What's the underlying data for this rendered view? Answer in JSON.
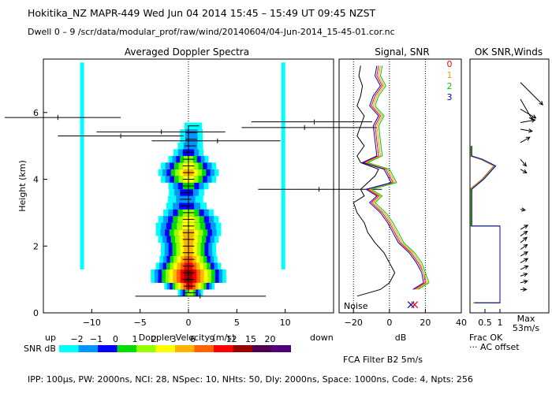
{
  "header": {
    "title": "Hokitika_NZ   MAPR-449   Wed Jun 04 2014 15:45 – 15:49 UT 09:45 NZST",
    "subtitle": "Dwell   0 –  9   /scr/data/modular_prof/raw/wind/20140604/04-Jun-2014_15-45-01.cor.nc"
  },
  "footer": {
    "text": "IPP: 100μs,  PW: 2000ns,  NCI:  28,  NSpec: 10,  NHts: 50,  Dly: 2000ns,  Space: 1000ns,  Code: 4,  Npts: 256"
  },
  "chart_data": [
    {
      "type": "heatmap",
      "title": "Averaged Doppler Spectra",
      "xlabel": "Doppler Velocity (m/s)",
      "ylabel": "Height (km)",
      "xlim": [
        -15,
        15
      ],
      "ylim": [
        0,
        7.6
      ],
      "xticks": [
        -10,
        -5,
        0,
        5,
        10
      ],
      "yticks": [
        0,
        2,
        4,
        6
      ],
      "side_labels": {
        "up": "up",
        "down": "down"
      },
      "spectral_lines_x": [
        -11,
        9.8
      ],
      "spectral_lines_y": [
        1.3,
        7.5
      ],
      "spectrum_profile": {
        "heights": [
          0.6,
          0.8,
          1.0,
          1.2,
          1.4,
          1.6,
          1.8,
          2.0,
          2.2,
          2.4,
          2.6,
          2.8,
          3.0,
          3.2,
          3.4,
          3.6,
          3.8,
          4.0,
          4.2,
          4.4,
          4.6,
          4.8,
          5.0,
          5.2,
          5.4,
          5.6
        ],
        "snr_db": [
          2,
          14,
          18,
          16,
          12,
          9,
          7,
          6,
          6,
          6,
          5,
          4,
          2,
          0,
          -1,
          0,
          1,
          4,
          6,
          5,
          2,
          0,
          -1,
          -1,
          -1,
          -2
        ],
        "width_ms": [
          1.0,
          2.0,
          3.0,
          3.0,
          2.6,
          2.3,
          2.2,
          2.2,
          2.4,
          2.6,
          2.6,
          2.4,
          2.0,
          1.6,
          1.4,
          1.4,
          1.6,
          2.2,
          2.4,
          2.2,
          1.6,
          1.2,
          1.0,
          0.9,
          0.9,
          0.7
        ],
        "peak_ms": [
          0.2,
          0.1,
          0.0,
          0.0,
          0.0,
          0.0,
          0.0,
          0.0,
          0.0,
          0.0,
          0.0,
          0.0,
          0.0,
          -0.2,
          -0.3,
          -0.2,
          0.0,
          0.0,
          0.0,
          0.0,
          0.0,
          0.0,
          0.2,
          0.3,
          0.3,
          0.5
        ]
      },
      "moment_bars": [
        {
          "h": 5.85,
          "v": -13.5,
          "lo": -19,
          "hi": -7
        },
        {
          "h": 5.72,
          "v": 13,
          "lo": 6.5,
          "hi": 19
        },
        {
          "h": 5.55,
          "v": 12,
          "lo": 5.5,
          "hi": 19.5
        },
        {
          "h": 5.42,
          "v": -2.8,
          "lo": -9.5,
          "hi": 3.8
        },
        {
          "h": 5.3,
          "v": -7,
          "lo": -13.5,
          "hi": -0.5
        },
        {
          "h": 5.15,
          "v": 3,
          "lo": -3.8,
          "hi": 9.5
        },
        {
          "h": 3.7,
          "v": 13.5,
          "lo": 7.2,
          "hi": 20
        },
        {
          "h": 0.5,
          "v": 1.2,
          "lo": -5.5,
          "hi": 8
        }
      ],
      "legend": {
        "label": "SNR dB",
        "ticks": [
          "−2",
          "−1",
          "0",
          "1",
          "2",
          "3",
          "6",
          "9",
          "12",
          "15",
          "20"
        ],
        "colors": [
          "#00ffff",
          "#0096ff",
          "#0000ff",
          "#00dc00",
          "#96ff00",
          "#ffff00",
          "#ffb400",
          "#ff6400",
          "#ff0000",
          "#960000",
          "#500050",
          "#500078"
        ]
      }
    },
    {
      "type": "line",
      "title": "Signal, SNR",
      "xlabel": "dB",
      "xlim": [
        -28,
        40
      ],
      "ylim": [
        0,
        7.6
      ],
      "xticks": [
        -20,
        0,
        20,
        40
      ],
      "dotted_x": [
        -20,
        0,
        20
      ],
      "noise_label": "Noise",
      "signal_profile": {
        "heights": [
          0.5,
          0.7,
          0.9,
          1.2,
          1.5,
          1.8,
          2.1,
          2.4,
          2.7,
          3.0,
          3.3,
          3.5,
          3.7,
          3.9,
          4.1,
          4.3,
          4.5,
          4.7,
          5.0,
          5.3,
          5.6,
          5.9,
          6.2,
          6.5,
          6.8,
          7.1,
          7.4
        ],
        "values": [
          -18,
          -5,
          0,
          3,
          0,
          -3,
          -8,
          -12,
          -14,
          -18,
          -20,
          -14,
          -16,
          -12,
          -8,
          -6,
          -16,
          -18,
          -14,
          -18,
          -16,
          -14,
          -18,
          -16,
          -15,
          -17,
          -16
        ]
      },
      "snr_profiles": [
        {
          "name": "0",
          "color": "#ff0000",
          "heights": [
            0.7,
            0.9,
            1.2,
            1.5,
            1.8,
            2.1,
            2.4,
            2.7,
            3.0,
            3.3,
            3.5,
            3.7,
            3.9,
            4.1,
            4.3,
            4.5,
            4.7,
            5.6,
            5.9,
            6.2,
            6.5,
            6.8,
            7.1,
            7.4
          ],
          "values": [
            14,
            20,
            19,
            16,
            12,
            6,
            3,
            0,
            -4,
            -10,
            -6,
            -12,
            2,
            0,
            -2,
            -14,
            -6,
            -8,
            -5,
            -10,
            -8,
            -4,
            -7,
            -6
          ]
        },
        {
          "name": "1",
          "color": "#f0a000",
          "heights": [
            0.7,
            0.9,
            1.2,
            1.5,
            1.8,
            2.1,
            2.4,
            2.7,
            3.0,
            3.3,
            3.5,
            3.7,
            3.9,
            4.1,
            4.3,
            4.5,
            4.7,
            5.6,
            5.9,
            6.2,
            6.5,
            6.8,
            7.1,
            7.4
          ],
          "values": [
            15,
            21,
            19,
            17,
            13,
            7,
            4,
            1,
            -3,
            -9,
            -5,
            -11,
            3,
            1,
            -1,
            -13,
            -5,
            -7,
            -4,
            -9,
            -7,
            -3,
            -6,
            -5
          ]
        },
        {
          "name": "2",
          "color": "#00cc00",
          "heights": [
            0.7,
            0.9,
            1.2,
            1.5,
            1.8,
            2.1,
            2.4,
            2.7,
            3.0,
            3.3,
            3.5,
            3.7,
            3.9,
            4.1,
            4.3,
            4.5,
            4.7,
            5.6,
            5.9,
            6.2,
            6.5,
            6.8,
            7.1,
            7.4
          ],
          "values": [
            16,
            22,
            20,
            18,
            14,
            8,
            5,
            2,
            -2,
            -8,
            -4,
            -10,
            4,
            2,
            0,
            -12,
            -4,
            -6,
            -3,
            -8,
            -6,
            -2,
            -5,
            -4
          ]
        },
        {
          "name": "3",
          "color": "#0000cc",
          "heights": [
            0.7,
            0.9,
            1.2,
            1.5,
            1.8,
            2.1,
            2.4,
            2.7,
            3.0,
            3.3,
            3.5,
            3.7,
            3.9,
            4.1,
            4.3,
            4.5,
            4.7,
            5.6,
            5.9,
            6.2,
            6.5,
            6.8,
            7.1,
            7.4
          ],
          "values": [
            13,
            19,
            18,
            15,
            11,
            5,
            2,
            -1,
            -5,
            -11,
            -7,
            -13,
            1,
            -1,
            -3,
            -15,
            -7,
            -9,
            -6,
            -11,
            -9,
            -5,
            -8,
            -7
          ]
        }
      ],
      "markers": [
        {
          "x": 12,
          "h": 0.15,
          "color": "#0000cc"
        },
        {
          "x": 14,
          "h": 0.15,
          "color": "#ff0000"
        }
      ],
      "legend_entries": [
        "0",
        "1",
        "2",
        "3"
      ],
      "filter_label": "FCA Filter B2   5m/s"
    },
    {
      "type": "line",
      "title": "OK SNR,Winds",
      "xlim": [
        0,
        1
      ],
      "ylim": [
        0,
        7.6
      ],
      "xticks": [
        "0.5",
        "1"
      ],
      "frac_label": "Frac OK",
      "ac_label": "··· AC offset",
      "max_label": "Max",
      "max_value": "53m/s",
      "frac_ok_profile": {
        "heights": [
          0.3,
          0.3,
          2.6,
          2.6,
          3.7,
          4.0,
          4.4,
          4.6,
          4.7,
          5.0
        ],
        "values": [
          0.1,
          1.0,
          1.0,
          0.0,
          0.0,
          0.4,
          0.8,
          0.35,
          0.0,
          0.0
        ]
      },
      "winds": [
        {
          "h": 6.9,
          "speed": 53,
          "dir": 135
        },
        {
          "h": 6.4,
          "speed": 40,
          "dir": 150
        },
        {
          "h": 6.1,
          "speed": 30,
          "dir": 120
        },
        {
          "h": 5.7,
          "speed": 25,
          "dir": 80
        },
        {
          "h": 5.5,
          "speed": 20,
          "dir": 100
        },
        {
          "h": 5.1,
          "speed": 18,
          "dir": 60
        },
        {
          "h": 4.6,
          "speed": 15,
          "dir": 140
        },
        {
          "h": 4.3,
          "speed": 12,
          "dir": 120
        },
        {
          "h": 3.1,
          "speed": 8,
          "dir": 100
        },
        {
          "h": 2.5,
          "speed": 14,
          "dir": 60
        },
        {
          "h": 2.3,
          "speed": 14,
          "dir": 55
        },
        {
          "h": 2.1,
          "speed": 14,
          "dir": 50
        },
        {
          "h": 1.9,
          "speed": 14,
          "dir": 55
        },
        {
          "h": 1.7,
          "speed": 14,
          "dir": 60
        },
        {
          "h": 1.5,
          "speed": 14,
          "dir": 60
        },
        {
          "h": 1.3,
          "speed": 14,
          "dir": 65
        },
        {
          "h": 1.1,
          "speed": 12,
          "dir": 70
        },
        {
          "h": 0.9,
          "speed": 12,
          "dir": 75
        },
        {
          "h": 0.7,
          "speed": 10,
          "dir": 90
        }
      ]
    }
  ]
}
